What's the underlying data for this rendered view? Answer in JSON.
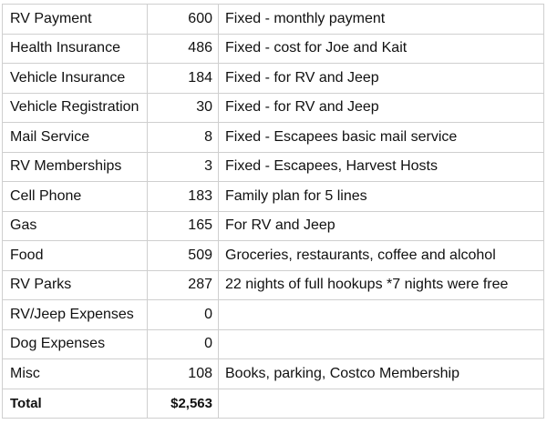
{
  "expenses": [
    {
      "category": "RV Payment",
      "amount": "600",
      "note": "Fixed - monthly payment"
    },
    {
      "category": "Health Insurance",
      "amount": "486",
      "note": "Fixed - cost for Joe and Kait"
    },
    {
      "category": "Vehicle Insurance",
      "amount": "184",
      "note": "Fixed - for RV and Jeep"
    },
    {
      "category": "Vehicle Registration",
      "amount": "30",
      "note": "Fixed - for RV and Jeep"
    },
    {
      "category": "Mail Service",
      "amount": "8",
      "note": "Fixed - Escapees basic mail service"
    },
    {
      "category": "RV Memberships",
      "amount": "3",
      "note": "Fixed - Escapees, Harvest Hosts"
    },
    {
      "category": "Cell Phone",
      "amount": "183",
      "note": "Family plan for 5 lines"
    },
    {
      "category": "Gas",
      "amount": "165",
      "note": "For RV and Jeep"
    },
    {
      "category": "Food",
      "amount": "509",
      "note": "Groceries, restaurants, coffee and alcohol"
    },
    {
      "category": "RV Parks",
      "amount": "287",
      "note": "22 nights of full hookups *7 nights were free"
    },
    {
      "category": "RV/Jeep Expenses",
      "amount": "0",
      "note": ""
    },
    {
      "category": "Dog Expenses",
      "amount": "0",
      "note": ""
    },
    {
      "category": "Misc",
      "amount": "108",
      "note": "Books, parking, Costco Membership"
    }
  ],
  "total": {
    "label": "Total",
    "amount": "$2,563",
    "note": ""
  },
  "colors": {
    "grid_line": "#cfcfcf",
    "text": "#111111",
    "background": "#ffffff"
  }
}
